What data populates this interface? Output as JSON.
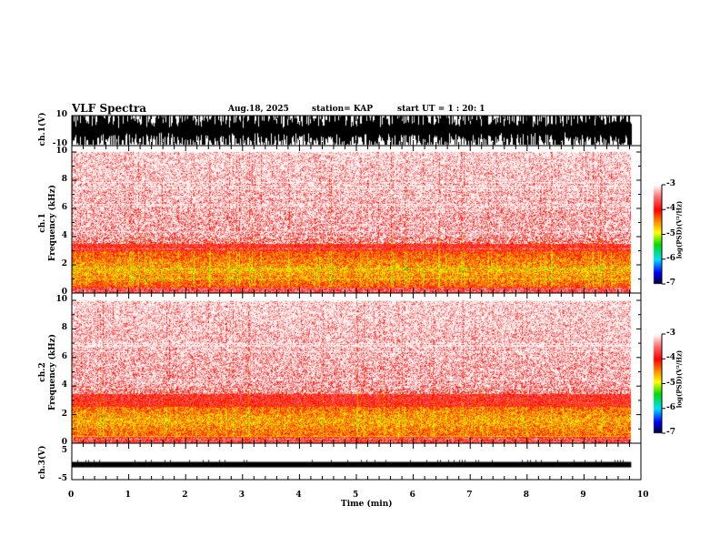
{
  "header": {
    "title": "VLF Spectra",
    "date": "Aug.18, 2025",
    "station": "station= KAP",
    "start_ut": "start  UT =   1 : 20: 1"
  },
  "chart_data": [
    {
      "type": "line",
      "name": "ch1 waveform",
      "ylabel": "ch.1(V)",
      "ylim": [
        -10,
        10
      ],
      "ytick_labels": [
        "10",
        "-10"
      ],
      "xlim": [
        0,
        10
      ],
      "data_end_min": 9.83,
      "description_values": {
        "amplitude_range_V": [
          -10,
          10
        ]
      }
    },
    {
      "type": "heatmap",
      "name": "ch1 spectrogram",
      "ylabel": "ch.1\nFrequency (kHz)",
      "ylabel_line1": "ch.1",
      "ylabel_line2": "Frequency  (kHz)",
      "ylim": [
        0,
        10
      ],
      "ytick_labels": [
        "0",
        "2",
        "4",
        "6",
        "8",
        "10"
      ],
      "xlim": [
        0,
        10
      ],
      "data_end_min": 9.83,
      "intense_band_kHz": [
        0.5,
        3.0
      ],
      "colorbar": {
        "label": "log(PSD)(V²/Hz)",
        "range": [
          -7,
          -3
        ],
        "tick_labels": [
          "-3",
          "-4",
          "-5",
          "-6",
          "-7"
        ]
      }
    },
    {
      "type": "heatmap",
      "name": "ch2 spectrogram",
      "ylabel_line1": "ch.2",
      "ylabel_line2": "Frequency  (kHz)",
      "ylim": [
        0,
        10
      ],
      "ytick_labels": [
        "0",
        "2",
        "4",
        "6",
        "8",
        "10"
      ],
      "xlim": [
        0,
        10
      ],
      "data_end_min": 9.83,
      "intense_band_kHz": [
        0.5,
        2.6
      ],
      "colorbar": {
        "label": "log(PSD)(V²/Hz)",
        "range": [
          -7,
          -3
        ],
        "tick_labels": [
          "-3",
          "-4",
          "-5",
          "-6",
          "-7"
        ]
      }
    },
    {
      "type": "line",
      "name": "ch3 waveform",
      "ylabel": "ch.3(V)",
      "ylim": [
        -5,
        5
      ],
      "ytick_labels": [
        "5",
        "-5"
      ],
      "xlim": [
        0,
        10
      ],
      "data_end_min": 9.83,
      "level_V": 0
    }
  ],
  "xaxis": {
    "label": "Time  (min)",
    "tick_labels": [
      "0",
      "1",
      "2",
      "3",
      "4",
      "5",
      "6",
      "7",
      "8",
      "9",
      "10"
    ]
  }
}
